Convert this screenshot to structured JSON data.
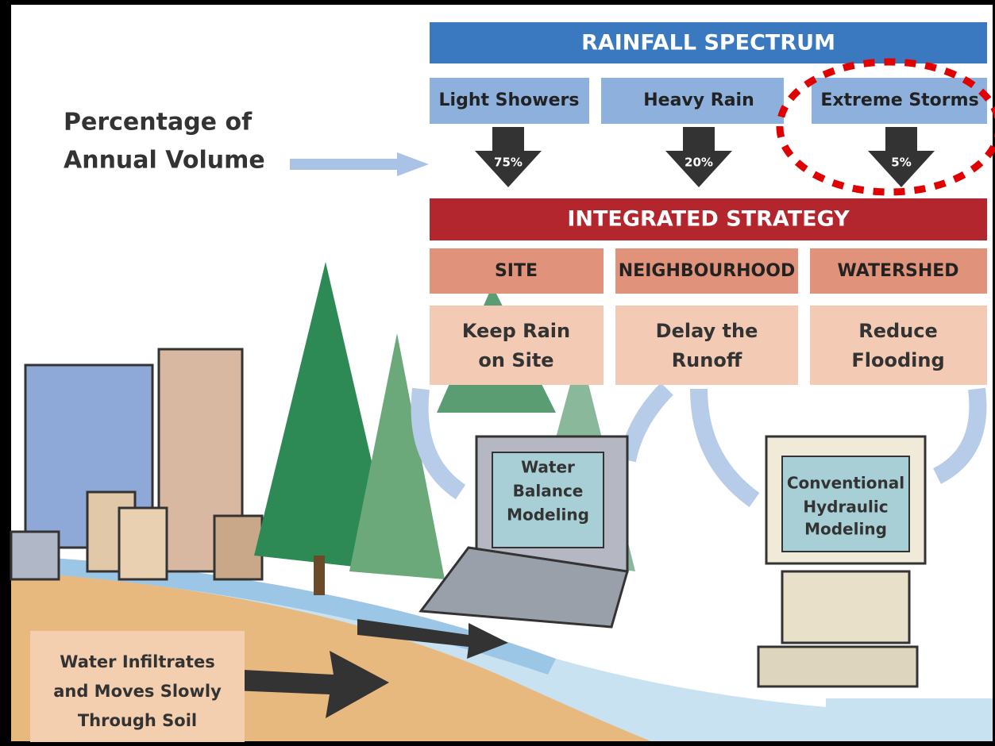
{
  "side_label": {
    "lines": [
      "Percentage of",
      "Annual Volume"
    ]
  },
  "rainfall": {
    "title": "RAINFALL SPECTRUM",
    "categories": [
      {
        "label": "Light Showers",
        "share": "75%"
      },
      {
        "label": "Heavy Rain",
        "share": "20%"
      },
      {
        "label": "Extreme Storms",
        "share": "5%"
      }
    ]
  },
  "strategy": {
    "title": "INTEGRATED STRATEGY",
    "scales": [
      "SITE",
      "NEIGHBOURHOOD",
      "WATERSHED"
    ],
    "goals": [
      {
        "lines": [
          "Keep Rain",
          "on Site"
        ]
      },
      {
        "lines": [
          "Delay the",
          "Runoff"
        ]
      },
      {
        "lines": [
          "Reduce",
          "Flooding"
        ]
      }
    ]
  },
  "models": [
    {
      "lines": [
        "Water",
        "Balance",
        "Modeling"
      ]
    },
    {
      "lines": [
        "Conventional",
        "Hydraulic",
        "Modeling"
      ]
    }
  ],
  "soil_label": {
    "lines": [
      "Water Infiltrates",
      "and Moves Slowly",
      "Through Soil"
    ]
  }
}
